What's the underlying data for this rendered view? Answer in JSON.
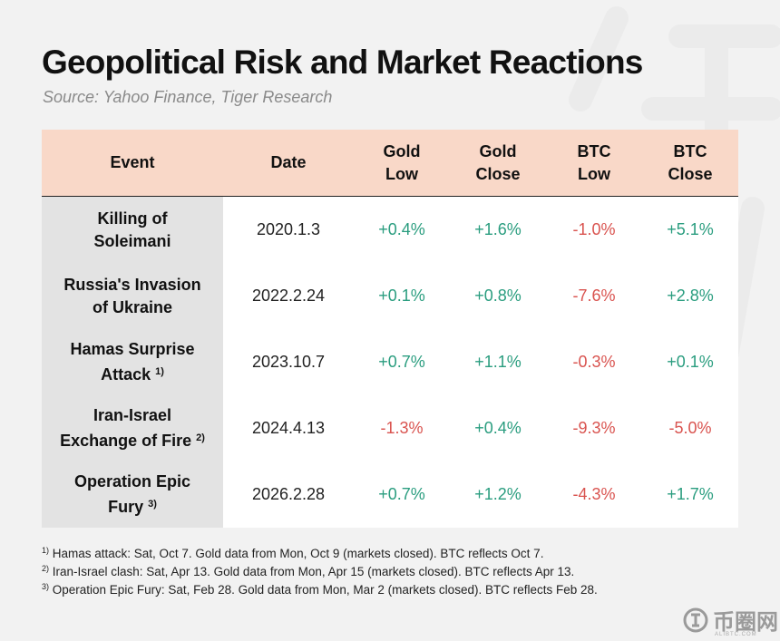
{
  "title": "Geopolitical Risk and Market Reactions",
  "subtitle": "Source: Yahoo Finance, Tiger Research",
  "colors": {
    "header_bg": "#f9d8c8",
    "event_bg": "#e3e3e3",
    "positive": "#2a9d7f",
    "negative": "#d9534f"
  },
  "chart_data": {
    "type": "table",
    "columns": [
      {
        "line1": "Event",
        "line2": ""
      },
      {
        "line1": "Date",
        "line2": ""
      },
      {
        "line1": "Gold",
        "line2": "Low"
      },
      {
        "line1": "Gold",
        "line2": "Close"
      },
      {
        "line1": "BTC",
        "line2": "Low"
      },
      {
        "line1": "BTC",
        "line2": "Close"
      }
    ],
    "rows": [
      {
        "event_line1": "Killing of",
        "event_line2": "Soleimani",
        "note": "",
        "date": "2020.1.3",
        "gold_low": "+0.4%",
        "gold_close": "+1.6%",
        "btc_low": "-1.0%",
        "btc_close": "+5.1%"
      },
      {
        "event_line1": "Russia's Invasion",
        "event_line2": "of Ukraine",
        "note": "",
        "date": "2022.2.24",
        "gold_low": "+0.1%",
        "gold_close": "+0.8%",
        "btc_low": "-7.6%",
        "btc_close": "+2.8%"
      },
      {
        "event_line1": "Hamas Surprise",
        "event_line2": "Attack",
        "note": "1)",
        "date": "2023.10.7",
        "gold_low": "+0.7%",
        "gold_close": "+1.1%",
        "btc_low": "-0.3%",
        "btc_close": "+0.1%"
      },
      {
        "event_line1": "Iran-Israel",
        "event_line2": "Exchange of Fire",
        "note": "2)",
        "date": "2024.4.13",
        "gold_low": "-1.3%",
        "gold_close": "+0.4%",
        "btc_low": "-9.3%",
        "btc_close": "-5.0%"
      },
      {
        "event_line1": "Operation Epic",
        "event_line2": "Fury",
        "note": "3)",
        "date": "2026.2.28",
        "gold_low": "+0.7%",
        "gold_close": "+1.2%",
        "btc_low": "-4.3%",
        "btc_close": "+1.7%"
      }
    ]
  },
  "footnotes": [
    {
      "mark": "1)",
      "text": " Hamas attack: Sat, Oct 7. Gold data from Mon, Oct 9 (markets closed). BTC reflects Oct 7."
    },
    {
      "mark": "2)",
      "text": " Iran-Israel clash: Sat, Apr 13. Gold data from Mon, Apr 15 (markets closed). BTC reflects Apr 13."
    },
    {
      "mark": "3)",
      "text": " Operation Epic Fury: Sat, Feb 28. Gold data from Mon, Mar 2 (markets closed). BTC reflects Feb 28."
    }
  ],
  "watermark": {
    "text": "币圈网",
    "sub": "ALIBTC.COM",
    "icon": "coin-logo-icon"
  }
}
